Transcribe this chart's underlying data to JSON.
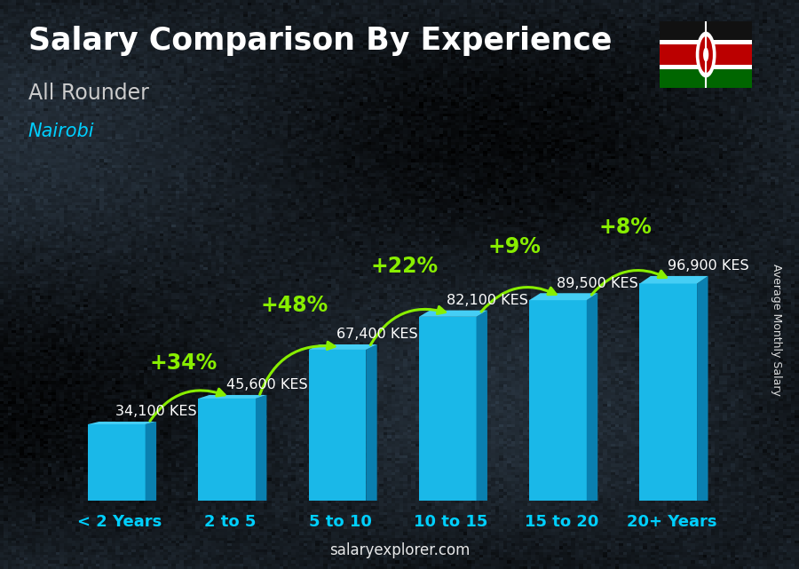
{
  "title": "Salary Comparison By Experience",
  "subtitle1": "All Rounder",
  "subtitle2": "Nairobi",
  "categories": [
    "< 2 Years",
    "2 to 5",
    "5 to 10",
    "10 to 15",
    "15 to 20",
    "20+ Years"
  ],
  "values": [
    34100,
    45600,
    67400,
    82100,
    89500,
    96900
  ],
  "labels": [
    "34,100 KES",
    "45,600 KES",
    "67,400 KES",
    "82,100 KES",
    "89,500 KES",
    "96,900 KES"
  ],
  "pct_changes": [
    "+34%",
    "+48%",
    "+22%",
    "+9%",
    "+8%"
  ],
  "front_color": "#1ab8e8",
  "top_color": "#45cef5",
  "side_color": "#0a80b0",
  "background_color": "#1e2830",
  "title_color": "#ffffff",
  "subtitle1_color": "#cccccc",
  "subtitle2_color": "#00cfff",
  "label_color": "#ffffff",
  "pct_color": "#88ee00",
  "xlabel_color": "#00cfff",
  "watermark": "salaryexplorer.com",
  "ylabel_text": "Average Monthly Salary",
  "bar_width": 0.52,
  "title_fontsize": 25,
  "subtitle1_fontsize": 17,
  "subtitle2_fontsize": 15,
  "label_fontsize": 11.5,
  "pct_fontsize": 17,
  "xlabel_fontsize": 13,
  "watermark_fontsize": 12
}
